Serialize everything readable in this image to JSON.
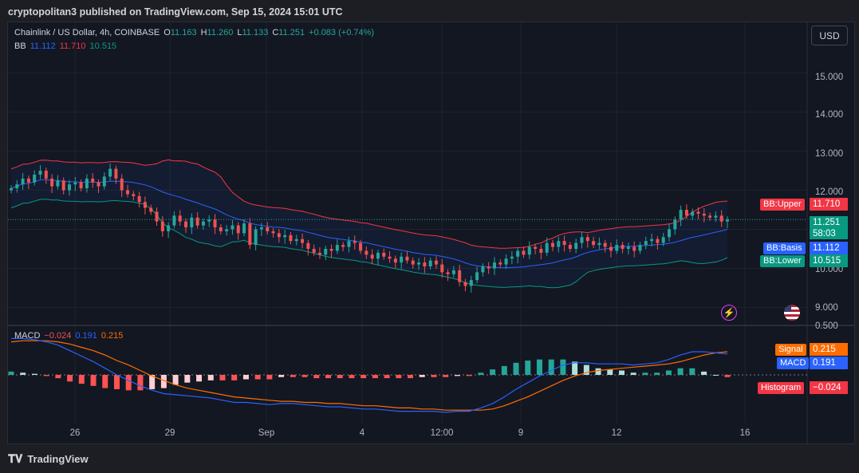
{
  "header": {
    "published": "cryptopolitan3 published on TradingView.com, Sep 15, 2024 15:01 UTC"
  },
  "symbol": {
    "title": "Chainlink / US Dollar, 4h, COINBASE",
    "o_label": "O",
    "o": "11.163",
    "h_label": "H",
    "h": "11.260",
    "l_label": "L",
    "l": "11.133",
    "c_label": "C",
    "c": "11.251",
    "change": "+0.083 (+0.74%)"
  },
  "bb_legend": {
    "name": "BB",
    "basis": "11.112",
    "upper": "11.710",
    "lower": "10.515"
  },
  "macd_legend": {
    "name": "MACD",
    "histogram": "−0.024",
    "macd": "0.191",
    "signal": "0.215"
  },
  "currency_button": "USD",
  "price_axis": [
    "15.000",
    "14.000",
    "13.000",
    "12.000",
    "10.000",
    "9.000",
    "0.500"
  ],
  "time_axis": [
    "26",
    "29",
    "Sep",
    "4",
    "12:00",
    "9",
    "12",
    "16"
  ],
  "price_tags": {
    "bb_upper_label": "BB:Upper",
    "bb_upper_value": "11.710",
    "last_price": "11.251",
    "countdown": "58:03",
    "bb_basis_label": "BB:Basis",
    "bb_basis_value": "11.112",
    "bb_lower_label": "BB:Lower",
    "bb_lower_value": "10.515"
  },
  "macd_tags": {
    "signal_label": "Signal",
    "signal_value": "0.215",
    "macd_label": "MACD",
    "macd_value": "0.191",
    "histogram_label": "Histogram",
    "histogram_value": "−0.024"
  },
  "footer": {
    "brand": "TradingView"
  },
  "colors": {
    "up": "#26a69a",
    "down": "#ef5350",
    "bb_upper": "#f23645",
    "bb_basis": "#2962ff",
    "bb_lower": "#089981",
    "macd": "#2962ff",
    "signal": "#ff6d00"
  },
  "chart_data": [
    {
      "type": "candlestick",
      "title": "Chainlink / US Dollar, 4h, COINBASE",
      "ylim": [
        8.6,
        16.3
      ],
      "x_ticks": [
        "26",
        "29",
        "Sep",
        "4",
        "12:00",
        "9",
        "12",
        "16"
      ],
      "y_ticks": [
        9,
        10,
        11,
        12,
        13,
        14,
        15
      ],
      "close": [
        12.05,
        12.15,
        12.3,
        12.2,
        12.4,
        12.5,
        12.3,
        12.1,
        12.25,
        12.0,
        12.15,
        12.2,
        12.05,
        12.3,
        12.2,
        12.1,
        12.35,
        12.55,
        12.3,
        12.0,
        11.9,
        11.85,
        11.7,
        11.55,
        11.45,
        11.2,
        10.95,
        11.1,
        11.35,
        11.2,
        11.05,
        11.3,
        11.1,
        11.2,
        11.25,
        11.05,
        10.95,
        11.0,
        11.1,
        10.9,
        11.15,
        10.6,
        11.0,
        11.05,
        10.95,
        10.9,
        10.8,
        10.85,
        10.7,
        10.75,
        10.65,
        10.5,
        10.4,
        10.35,
        10.5,
        10.45,
        10.6,
        10.55,
        10.7,
        10.65,
        10.45,
        10.35,
        10.25,
        10.4,
        10.3,
        10.25,
        10.15,
        10.3,
        10.2,
        10.1,
        10.15,
        10.05,
        10.2,
        10.1,
        9.9,
        9.85,
        9.95,
        9.65,
        9.55,
        9.7,
        9.9,
        10.05,
        10.0,
        10.15,
        10.1,
        10.25,
        10.3,
        10.45,
        10.35,
        10.55,
        10.5,
        10.4,
        10.65,
        10.55,
        10.7,
        10.6,
        10.5,
        10.65,
        10.8,
        10.7,
        10.6,
        10.65,
        10.55,
        10.45,
        10.6,
        10.5,
        10.55,
        10.45,
        10.6,
        10.7,
        10.75,
        10.65,
        10.8,
        11.0,
        11.25,
        11.5,
        11.35,
        11.45,
        11.4,
        11.35,
        11.3,
        11.35,
        11.2,
        11.25
      ],
      "bb_upper": 11.71,
      "bb_basis": 11.112,
      "bb_lower": 10.515
    },
    {
      "type": "line",
      "title": "MACD",
      "series": [
        {
          "name": "MACD",
          "values": [
            0.33,
            0.33,
            0.32,
            0.3,
            0.27,
            0.22,
            0.17,
            0.12,
            0.06,
            0.0,
            -0.05,
            -0.1,
            -0.14,
            -0.17,
            -0.18,
            -0.19,
            -0.2,
            -0.21,
            -0.23,
            -0.25,
            -0.25,
            -0.26,
            -0.27,
            -0.26,
            -0.26,
            -0.27,
            -0.28,
            -0.29,
            -0.29,
            -0.3,
            -0.31,
            -0.31,
            -0.32,
            -0.33,
            -0.33,
            -0.33,
            -0.33,
            -0.34,
            -0.33,
            -0.33,
            -0.3,
            -0.26,
            -0.2,
            -0.13,
            -0.07,
            -0.01,
            0.04,
            0.09,
            0.11,
            0.11,
            0.1,
            0.1,
            0.1,
            0.09,
            0.1,
            0.11,
            0.14,
            0.18,
            0.21,
            0.21,
            0.2,
            0.19
          ]
        },
        {
          "name": "Signal",
          "values": [
            0.3,
            0.31,
            0.31,
            0.31,
            0.3,
            0.28,
            0.25,
            0.22,
            0.18,
            0.13,
            0.09,
            0.04,
            -0.01,
            -0.05,
            -0.09,
            -0.12,
            -0.14,
            -0.16,
            -0.18,
            -0.2,
            -0.21,
            -0.22,
            -0.23,
            -0.24,
            -0.24,
            -0.25,
            -0.25,
            -0.26,
            -0.26,
            -0.27,
            -0.28,
            -0.28,
            -0.29,
            -0.3,
            -0.3,
            -0.31,
            -0.31,
            -0.32,
            -0.32,
            -0.32,
            -0.32,
            -0.31,
            -0.28,
            -0.24,
            -0.2,
            -0.15,
            -0.1,
            -0.05,
            -0.01,
            0.02,
            0.04,
            0.05,
            0.06,
            0.07,
            0.08,
            0.09,
            0.1,
            0.12,
            0.15,
            0.18,
            0.2,
            0.21
          ]
        },
        {
          "name": "Histogram",
          "values": [
            0.03,
            0.02,
            0.01,
            -0.01,
            -0.03,
            -0.06,
            -0.08,
            -0.1,
            -0.12,
            -0.13,
            -0.14,
            -0.14,
            -0.13,
            -0.12,
            -0.09,
            -0.07,
            -0.06,
            -0.05,
            -0.05,
            -0.05,
            -0.04,
            -0.04,
            -0.04,
            -0.02,
            -0.02,
            -0.02,
            -0.03,
            -0.03,
            -0.03,
            -0.03,
            -0.03,
            -0.03,
            -0.03,
            -0.03,
            -0.03,
            -0.02,
            -0.02,
            -0.02,
            -0.01,
            -0.01,
            0.02,
            0.05,
            0.08,
            0.11,
            0.13,
            0.14,
            0.14,
            0.14,
            0.12,
            0.09,
            0.06,
            0.05,
            0.04,
            0.02,
            0.02,
            0.02,
            0.04,
            0.06,
            0.06,
            0.03,
            0.0,
            -0.02
          ]
        }
      ]
    }
  ]
}
